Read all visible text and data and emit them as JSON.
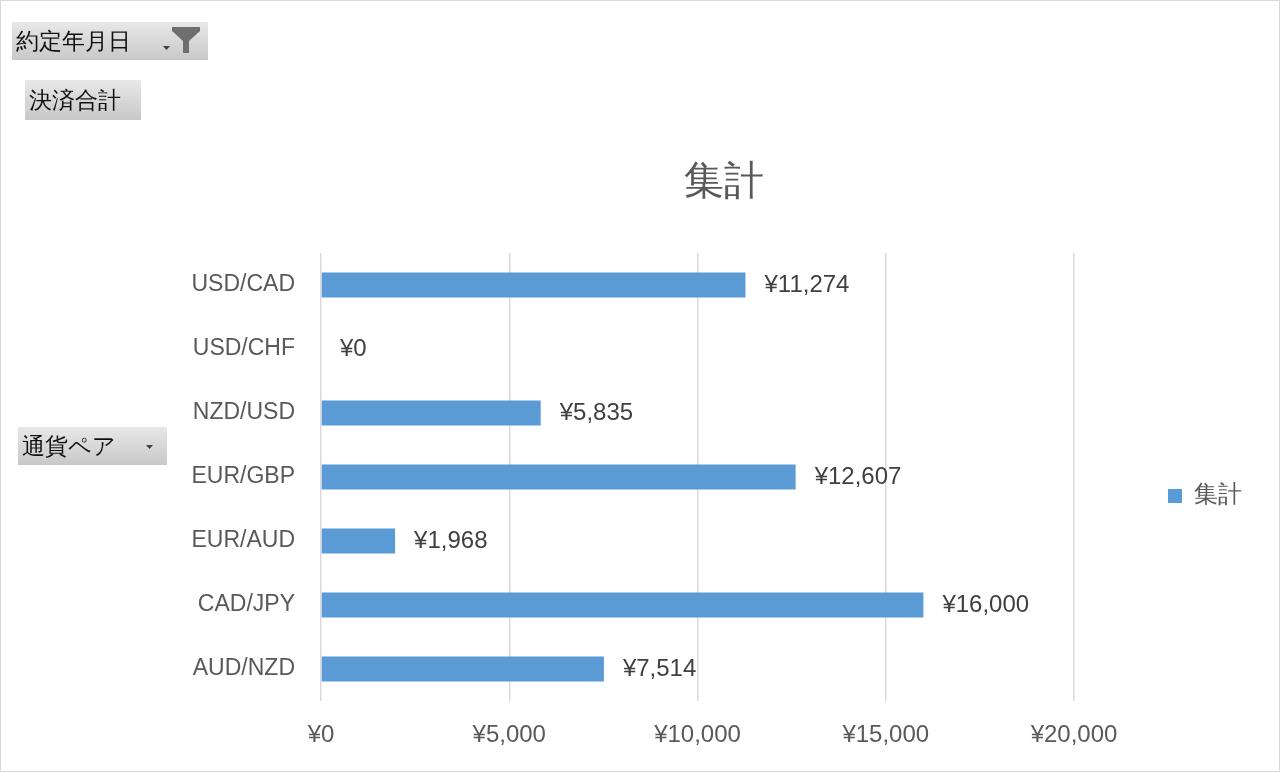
{
  "chart_data": {
    "type": "bar",
    "orientation": "horizontal",
    "title": "集計",
    "categories": [
      "USD/CAD",
      "USD/CHF",
      "NZD/USD",
      "EUR/GBP",
      "EUR/AUD",
      "CAD/JPY",
      "AUD/NZD"
    ],
    "series": [
      {
        "name": "集計",
        "color": "#5b9bd5",
        "values": [
          11274,
          0,
          5835,
          12607,
          1968,
          16000,
          7514
        ],
        "value_labels": [
          "¥11,274",
          "¥0",
          "¥5,835",
          "¥12,607",
          "¥1,968",
          "¥16,000",
          "¥7,514"
        ]
      }
    ],
    "xlim": [
      0,
      20000
    ],
    "xticks": [
      {
        "value": 0,
        "label": "¥0"
      },
      {
        "value": 5000,
        "label": "¥5,000"
      },
      {
        "value": 10000,
        "label": "¥10,000"
      },
      {
        "value": 15000,
        "label": "¥15,000"
      },
      {
        "value": 20000,
        "label": "¥20,000"
      }
    ],
    "grid": "x",
    "legend": "right",
    "annotations": [
      "約定年月日",
      "決済合計",
      "通貨ペア"
    ]
  }
}
